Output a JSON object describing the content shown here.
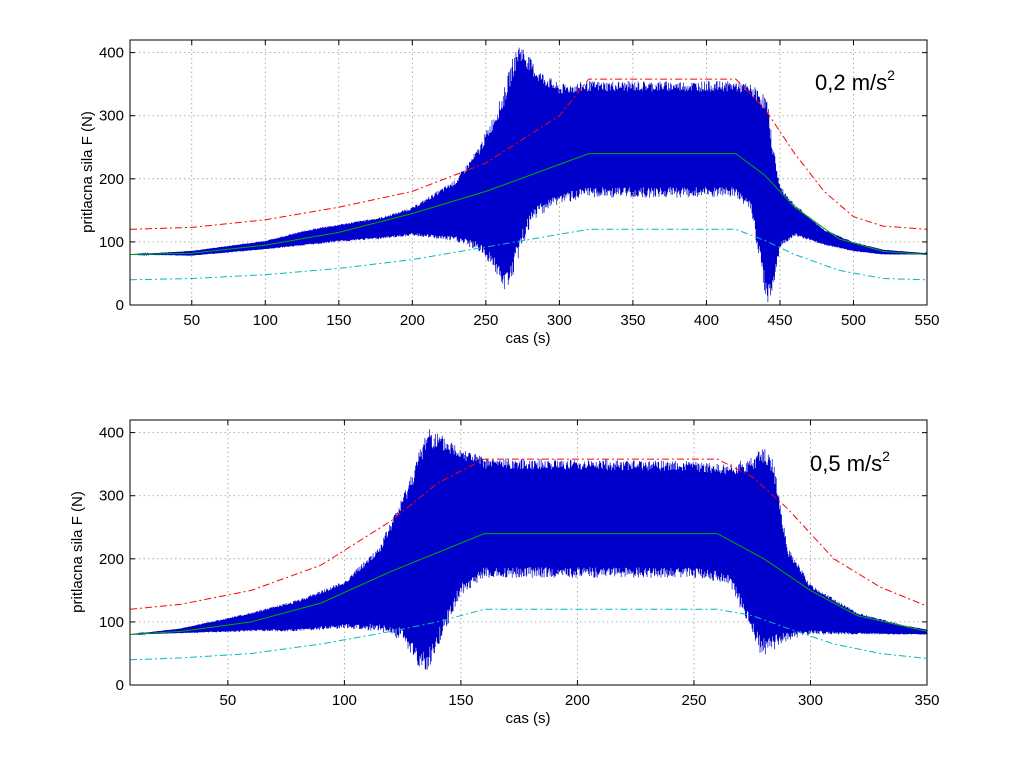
{
  "chart_data": [
    {
      "type": "line",
      "annotation": "0,2 m/s",
      "annotation_sup": "2",
      "xlabel": "cas (s)",
      "ylabel": "pritlacna sila F (N)",
      "xlim": [
        8,
        550
      ],
      "ylim": [
        0,
        420
      ],
      "xticks": [
        50,
        100,
        150,
        200,
        250,
        300,
        350,
        400,
        450,
        500,
        550
      ],
      "yticks": [
        0,
        100,
        200,
        300,
        400
      ],
      "grid": true,
      "colors": {
        "signal": "#0000cc",
        "mean": "#00aa00",
        "upper": "#ff0000",
        "lower": "#00bbbb"
      },
      "mean_line": [
        [
          8,
          80
        ],
        [
          50,
          82
        ],
        [
          100,
          95
        ],
        [
          150,
          115
        ],
        [
          200,
          145
        ],
        [
          250,
          180
        ],
        [
          320,
          240
        ],
        [
          420,
          240
        ],
        [
          440,
          205
        ],
        [
          460,
          155
        ],
        [
          490,
          105
        ],
        [
          520,
          85
        ],
        [
          550,
          80
        ]
      ],
      "upper_limit": [
        [
          8,
          120
        ],
        [
          50,
          123
        ],
        [
          100,
          135
        ],
        [
          150,
          155
        ],
        [
          200,
          180
        ],
        [
          250,
          225
        ],
        [
          300,
          300
        ],
        [
          320,
          358
        ],
        [
          420,
          358
        ],
        [
          440,
          310
        ],
        [
          460,
          240
        ],
        [
          480,
          180
        ],
        [
          500,
          140
        ],
        [
          520,
          125
        ],
        [
          550,
          120
        ]
      ],
      "lower_limit": [
        [
          8,
          40
        ],
        [
          50,
          42
        ],
        [
          100,
          48
        ],
        [
          150,
          58
        ],
        [
          200,
          72
        ],
        [
          250,
          92
        ],
        [
          300,
          112
        ],
        [
          320,
          120
        ],
        [
          420,
          120
        ],
        [
          440,
          102
        ],
        [
          460,
          80
        ],
        [
          490,
          55
        ],
        [
          520,
          42
        ],
        [
          550,
          40
        ]
      ],
      "signal_envelope": [
        [
          8,
          80,
          80
        ],
        [
          50,
          78,
          86
        ],
        [
          100,
          88,
          102
        ],
        [
          130,
          95,
          120
        ],
        [
          150,
          100,
          128
        ],
        [
          180,
          105,
          140
        ],
        [
          200,
          110,
          155
        ],
        [
          230,
          100,
          200
        ],
        [
          245,
          85,
          250
        ],
        [
          255,
          60,
          300
        ],
        [
          262,
          20,
          340
        ],
        [
          268,
          40,
          390
        ],
        [
          273,
          80,
          418
        ],
        [
          278,
          110,
          400
        ],
        [
          285,
          140,
          375
        ],
        [
          300,
          160,
          350
        ],
        [
          320,
          170,
          355
        ],
        [
          420,
          170,
          355
        ],
        [
          430,
          150,
          350
        ],
        [
          437,
          60,
          340
        ],
        [
          441,
          0,
          330
        ],
        [
          445,
          20,
          260
        ],
        [
          450,
          90,
          190
        ],
        [
          460,
          110,
          160
        ],
        [
          480,
          95,
          120
        ],
        [
          500,
          85,
          100
        ],
        [
          520,
          80,
          88
        ],
        [
          550,
          80,
          82
        ]
      ]
    },
    {
      "type": "line",
      "annotation": "0,5 m/s",
      "annotation_sup": "2",
      "xlabel": "cas (s)",
      "ylabel": "pritlacna sila F (N)",
      "xlim": [
        8,
        350
      ],
      "ylim": [
        0,
        420
      ],
      "xticks": [
        50,
        100,
        150,
        200,
        250,
        300,
        350
      ],
      "yticks": [
        0,
        100,
        200,
        300,
        400
      ],
      "grid": true,
      "colors": {
        "signal": "#0000cc",
        "mean": "#00aa00",
        "upper": "#ff0000",
        "lower": "#00bbbb"
      },
      "mean_line": [
        [
          8,
          80
        ],
        [
          30,
          85
        ],
        [
          60,
          100
        ],
        [
          90,
          130
        ],
        [
          120,
          180
        ],
        [
          160,
          240
        ],
        [
          260,
          240
        ],
        [
          280,
          200
        ],
        [
          300,
          150
        ],
        [
          320,
          110
        ],
        [
          350,
          85
        ]
      ],
      "upper_limit": [
        [
          8,
          120
        ],
        [
          30,
          128
        ],
        [
          60,
          150
        ],
        [
          90,
          190
        ],
        [
          120,
          260
        ],
        [
          140,
          320
        ],
        [
          160,
          358
        ],
        [
          260,
          358
        ],
        [
          275,
          330
        ],
        [
          290,
          280
        ],
        [
          310,
          200
        ],
        [
          330,
          155
        ],
        [
          350,
          125
        ]
      ],
      "lower_limit": [
        [
          8,
          40
        ],
        [
          30,
          43
        ],
        [
          60,
          50
        ],
        [
          90,
          65
        ],
        [
          120,
          85
        ],
        [
          140,
          100
        ],
        [
          160,
          120
        ],
        [
          260,
          120
        ],
        [
          275,
          110
        ],
        [
          290,
          90
        ],
        [
          310,
          65
        ],
        [
          330,
          50
        ],
        [
          350,
          42
        ]
      ],
      "signal_envelope": [
        [
          8,
          80,
          80
        ],
        [
          30,
          82,
          90
        ],
        [
          60,
          85,
          115
        ],
        [
          80,
          85,
          135
        ],
        [
          100,
          90,
          165
        ],
        [
          115,
          85,
          220
        ],
        [
          125,
          70,
          300
        ],
        [
          132,
          25,
          370
        ],
        [
          136,
          20,
          415
        ],
        [
          140,
          60,
          400
        ],
        [
          150,
          140,
          380
        ],
        [
          160,
          170,
          360
        ],
        [
          250,
          170,
          355
        ],
        [
          265,
          160,
          350
        ],
        [
          274,
          90,
          360
        ],
        [
          279,
          45,
          380
        ],
        [
          284,
          55,
          360
        ],
        [
          290,
          70,
          220
        ],
        [
          300,
          80,
          160
        ],
        [
          320,
          80,
          115
        ],
        [
          340,
          80,
          95
        ],
        [
          350,
          80,
          88
        ]
      ]
    }
  ]
}
